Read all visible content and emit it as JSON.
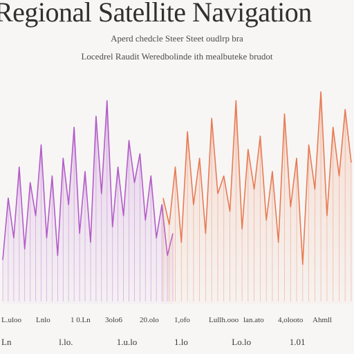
{
  "chart_data": {
    "type": "line",
    "title": "Regional Satellite Navigation",
    "subtitle_lines": [
      "Aperd chedcle Steer Steet oudlrp bra",
      "Locedrel Raudit Weredbolinde ith mealbuteke brudot"
    ],
    "grid": false,
    "x_ticks_row1": [
      "L.uloo",
      "Lnlo",
      "1 0.Ln",
      "3olo6",
      "20.olo",
      "1,ofo",
      "Lullh.ooo",
      "lan.ato",
      "4,olooto",
      "Ahmll"
    ],
    "x_ticks_row2": [
      "Ln",
      "l.lo.",
      "1.u.lo",
      "1.lo",
      "Lo.lo",
      "1.01"
    ],
    "ylim": [
      0,
      100
    ],
    "series": [
      {
        "color": "#b35bc9",
        "values": [
          20,
          48,
          30,
          62,
          25,
          55,
          40,
          72,
          30,
          58,
          22,
          66,
          45,
          80,
          32,
          60,
          28,
          85,
          50,
          92,
          35,
          62,
          40,
          74,
          55,
          68,
          38,
          58,
          30,
          45,
          22,
          32
        ]
      },
      {
        "color": "#e87a52",
        "values": [
          48,
          36,
          62,
          28,
          78,
          45,
          66,
          32,
          84,
          50,
          58,
          42,
          92,
          34,
          70,
          52,
          76,
          38,
          60,
          28,
          86,
          44,
          66,
          18,
          72,
          52,
          96,
          40,
          80,
          58,
          88,
          64
        ]
      }
    ]
  }
}
